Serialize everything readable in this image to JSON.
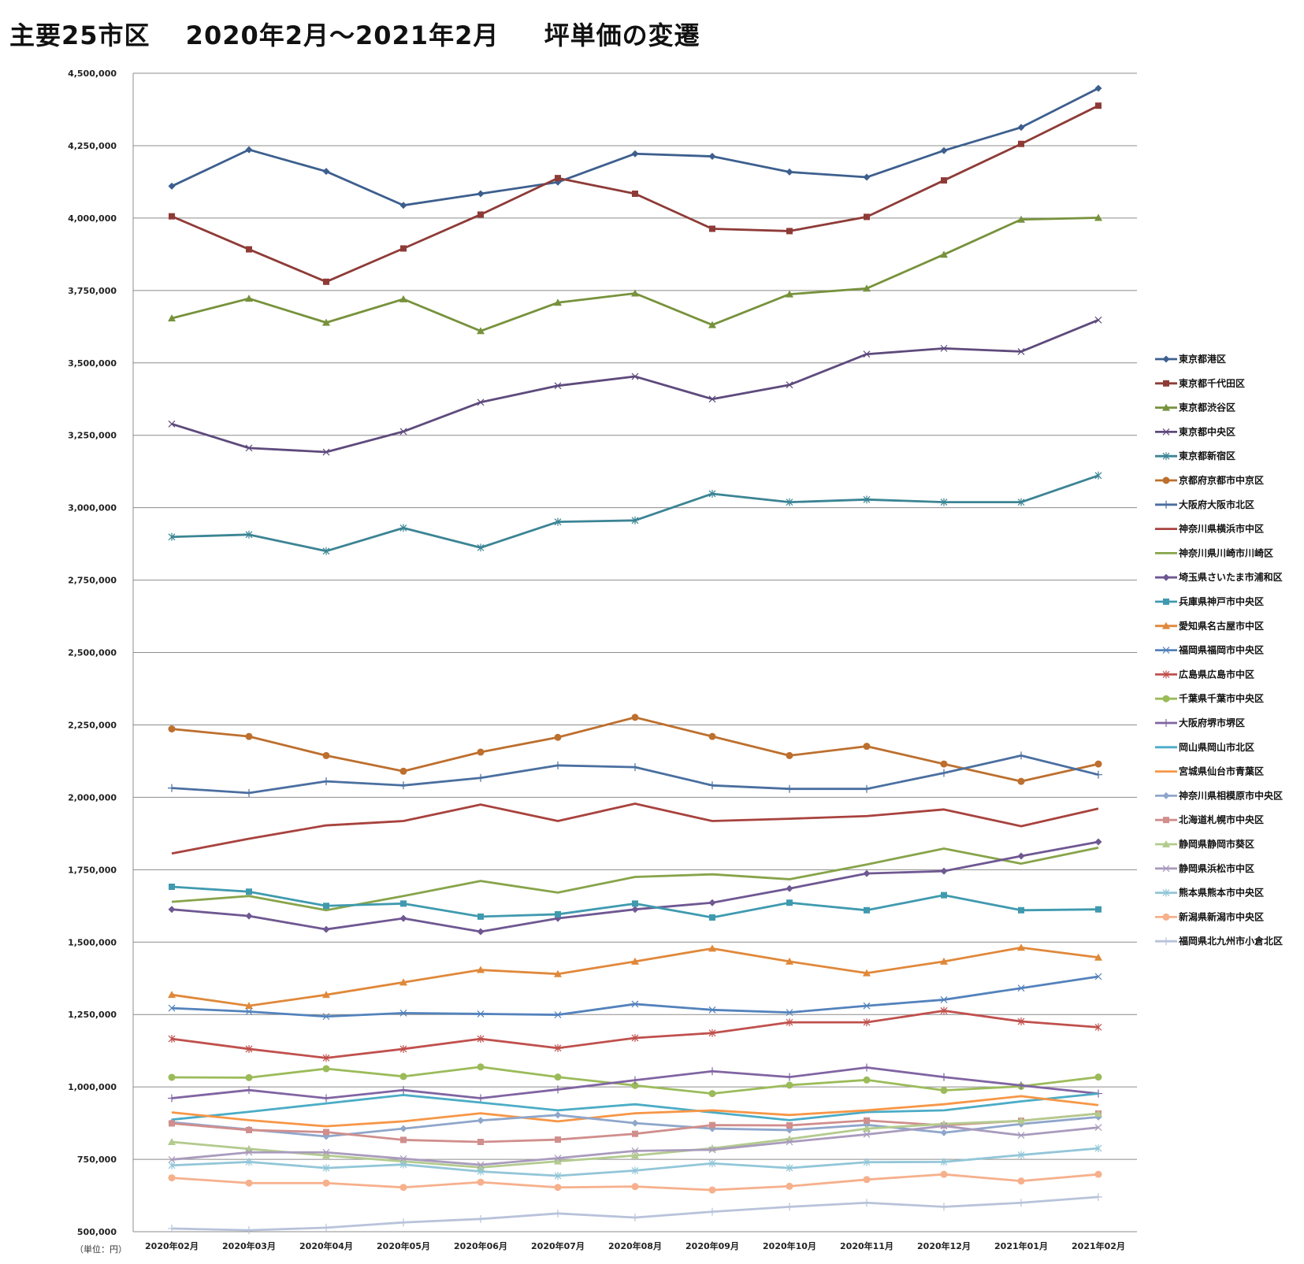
{
  "chart_data": {
    "type": "line",
    "title": "主要25市区　 2020年2月～2021年2月　  坪単価の変遷",
    "xlabel": "",
    "ylabel": "",
    "unit_label": "（単位：円）",
    "ylim": [
      500000,
      4500000
    ],
    "ystep": 250000,
    "grid": true,
    "legend_position": "right",
    "categories": [
      "2020年02月",
      "2020年03月",
      "2020年04月",
      "2020年05月",
      "2020年06月",
      "2020年07月",
      "2020年08月",
      "2020年09月",
      "2020年10月",
      "2020年11月",
      "2020年12月",
      "2021年01月",
      "2021年02月"
    ],
    "series": [
      {
        "name": "東京都港区",
        "color": "#3D5F8E",
        "marker": "diamond",
        "values": [
          4110000,
          4236000,
          4161000,
          4044000,
          4084000,
          4124000,
          4222000,
          4213000,
          4159000,
          4141000,
          4233000,
          4313000,
          4448000
        ]
      },
      {
        "name": "東京都千代田区",
        "color": "#8E3B37",
        "marker": "square",
        "values": [
          4006000,
          3892000,
          3780000,
          3895000,
          4012000,
          4138000,
          4084000,
          3963000,
          3955000,
          4004000,
          4130000,
          4256000,
          4388000
        ]
      },
      {
        "name": "東京都渋谷区",
        "color": "#77923C",
        "marker": "triangle",
        "values": [
          3654000,
          3722000,
          3639000,
          3720000,
          3610000,
          3708000,
          3740000,
          3631000,
          3737000,
          3757000,
          3874000,
          3995000,
          4001000
        ]
      },
      {
        "name": "東京都中央区",
        "color": "#5E4A7C",
        "marker": "x",
        "values": [
          3289000,
          3206000,
          3192000,
          3263000,
          3364000,
          3421000,
          3453000,
          3375000,
          3424000,
          3530000,
          3550000,
          3539000,
          3648000
        ]
      },
      {
        "name": "東京都新宿区",
        "color": "#3B8494",
        "marker": "asterisk",
        "values": [
          2899000,
          2907000,
          2850000,
          2930000,
          2862000,
          2951000,
          2956000,
          3048000,
          3019000,
          3028000,
          3019000,
          3019000,
          3111000
        ]
      },
      {
        "name": "京都府京都市中京区",
        "color": "#BD6F2E",
        "marker": "circle",
        "values": [
          2236000,
          2210000,
          2144000,
          2090000,
          2156000,
          2207000,
          2276000,
          2210000,
          2144000,
          2176000,
          2115000,
          2055000,
          2115000
        ]
      },
      {
        "name": "大阪府大阪市北区",
        "color": "#4A6FA0",
        "marker": "plus",
        "values": [
          2032000,
          2015000,
          2055000,
          2041000,
          2067000,
          2110000,
          2104000,
          2041000,
          2029000,
          2029000,
          2084000,
          2144000,
          2078000
        ]
      },
      {
        "name": "神奈川県横浜市中区",
        "color": "#A8423E",
        "marker": "none",
        "values": [
          1806000,
          1857000,
          1903000,
          1918000,
          1975000,
          1918000,
          1978000,
          1918000,
          1926000,
          1935000,
          1958000,
          1900000,
          1961000
        ]
      },
      {
        "name": "神奈川県川崎市川崎区",
        "color": "#87A44A",
        "marker": "none",
        "values": [
          1639000,
          1659000,
          1610000,
          1659000,
          1711000,
          1671000,
          1725000,
          1734000,
          1717000,
          1768000,
          1823000,
          1771000,
          1826000
        ]
      },
      {
        "name": "埼玉県さいたま市浦和区",
        "color": "#6F5792",
        "marker": "diamond",
        "values": [
          1613000,
          1590000,
          1544000,
          1582000,
          1536000,
          1582000,
          1613000,
          1636000,
          1685000,
          1737000,
          1745000,
          1797000,
          1846000
        ]
      },
      {
        "name": "兵庫県神戸市中央区",
        "color": "#3F9AAF",
        "marker": "square",
        "values": [
          1691000,
          1674000,
          1625000,
          1633000,
          1588000,
          1596000,
          1633000,
          1585000,
          1636000,
          1610000,
          1662000,
          1610000,
          1613000
        ]
      },
      {
        "name": "愛知県名古屋市中区",
        "color": "#E0883A",
        "marker": "triangle",
        "values": [
          1318000,
          1280000,
          1318000,
          1361000,
          1404000,
          1390000,
          1433000,
          1478000,
          1433000,
          1393000,
          1433000,
          1481000,
          1447000
        ]
      },
      {
        "name": "福岡県福岡市中央区",
        "color": "#5382BC",
        "marker": "x",
        "values": [
          1272000,
          1260000,
          1243000,
          1255000,
          1252000,
          1249000,
          1286000,
          1266000,
          1257000,
          1280000,
          1301000,
          1341000,
          1381000
        ]
      },
      {
        "name": "広島県広島市中区",
        "color": "#C0504D",
        "marker": "asterisk",
        "values": [
          1166000,
          1131000,
          1100000,
          1131000,
          1166000,
          1134000,
          1169000,
          1186000,
          1223000,
          1223000,
          1263000,
          1226000,
          1206000
        ]
      },
      {
        "name": "千葉県千葉市中央区",
        "color": "#9BBB59",
        "marker": "circle",
        "values": [
          1033000,
          1032000,
          1063000,
          1036000,
          1069000,
          1034000,
          1005000,
          977000,
          1006000,
          1024000,
          988000,
          1002000,
          1034000
        ]
      },
      {
        "name": "大阪府堺市堺区",
        "color": "#8064A2",
        "marker": "plus",
        "values": [
          961000,
          989000,
          961000,
          989000,
          961000,
          991000,
          1023000,
          1054000,
          1034000,
          1067000,
          1034000,
          1005000,
          977000
        ]
      },
      {
        "name": "岡山県岡山市北区",
        "color": "#4BACC6",
        "marker": "none",
        "values": [
          887000,
          914000,
          943000,
          972000,
          946000,
          919000,
          940000,
          912000,
          885000,
          913000,
          919000,
          950000,
          977000
        ]
      },
      {
        "name": "宮城県仙台市青葉区",
        "color": "#F79646",
        "marker": "none",
        "values": [
          912000,
          885000,
          864000,
          881000,
          909000,
          881000,
          909000,
          919000,
          903000,
          919000,
          940000,
          968000,
          937000
        ]
      },
      {
        "name": "神奈川県相模原市中央区",
        "color": "#8FA6CB",
        "marker": "diamond",
        "values": [
          878000,
          853000,
          829000,
          856000,
          884000,
          903000,
          875000,
          856000,
          851000,
          869000,
          842000,
          872000,
          896000
        ]
      },
      {
        "name": "北海道札幌市中央区",
        "color": "#D08E8C",
        "marker": "square",
        "values": [
          874000,
          851000,
          844000,
          817000,
          810000,
          818000,
          838000,
          868000,
          867000,
          884000,
          867000,
          883000,
          908000
        ]
      },
      {
        "name": "静岡県静岡市葵区",
        "color": "#B3CB8E",
        "marker": "triangle",
        "values": [
          810000,
          786000,
          763000,
          743000,
          722000,
          743000,
          763000,
          788000,
          820000,
          856000,
          872000,
          883000,
          908000
        ]
      },
      {
        "name": "静岡県浜松市中区",
        "color": "#A99BBD",
        "marker": "x",
        "values": [
          749000,
          774000,
          774000,
          752000,
          731000,
          754000,
          779000,
          783000,
          810000,
          836000,
          865000,
          833000,
          860000
        ]
      },
      {
        "name": "熊本県熊本市中央区",
        "color": "#92C6D8",
        "marker": "asterisk",
        "values": [
          729000,
          741000,
          720000,
          732000,
          708000,
          693000,
          711000,
          736000,
          720000,
          740000,
          741000,
          765000,
          788000
        ]
      },
      {
        "name": "新潟県新潟市中央区",
        "color": "#F6B08C",
        "marker": "circle",
        "values": [
          686000,
          668000,
          668000,
          653000,
          671000,
          653000,
          656000,
          644000,
          657000,
          680000,
          698000,
          675000,
          698000
        ]
      },
      {
        "name": "福岡県北九州市小倉北区",
        "color": "#B8C3DA",
        "marker": "plus",
        "values": [
          511000,
          505000,
          514000,
          532000,
          544000,
          563000,
          549000,
          569000,
          586000,
          600000,
          586000,
          600000,
          620000
        ]
      }
    ]
  }
}
